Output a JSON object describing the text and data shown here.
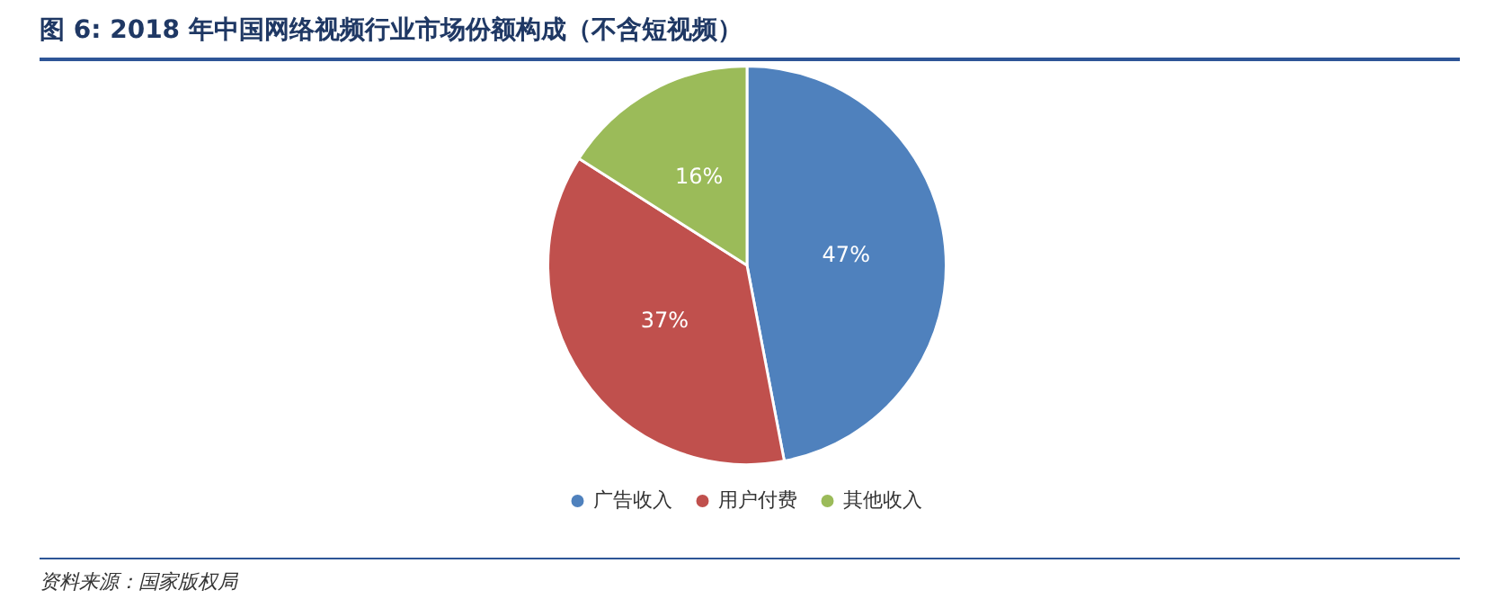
{
  "chart_data": {
    "type": "pie",
    "title": "图 6: 2018 年中国网络视频行业市场份额构成（不含短视频）",
    "categories": [
      "广告收入",
      "用户付费",
      "其他收入"
    ],
    "values": [
      47,
      37,
      16
    ],
    "colors": [
      "#4f81bd",
      "#c0504d",
      "#9bbb59"
    ],
    "value_labels": [
      "47%",
      "37%",
      "16%"
    ],
    "legend": "bottom",
    "annotations": [
      "资料来源：国家版权局"
    ]
  }
}
